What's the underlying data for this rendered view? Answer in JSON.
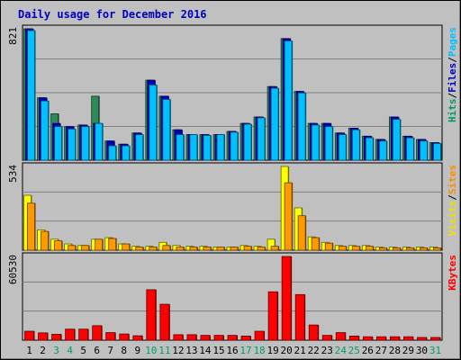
{
  "chart_data": {
    "type": "bar",
    "title": "Daily usage for December 2016",
    "days": [
      "1",
      "2",
      "3",
      "4",
      "5",
      "6",
      "7",
      "8",
      "9",
      "10",
      "11",
      "12",
      "13",
      "14",
      "15",
      "16",
      "17",
      "18",
      "19",
      "20",
      "21",
      "22",
      "23",
      "24",
      "25",
      "26",
      "27",
      "28",
      "29",
      "30",
      "31"
    ],
    "weekend_days": [
      "3",
      "4",
      "10",
      "11",
      "17",
      "18",
      "24",
      "25",
      "31"
    ],
    "panels": [
      {
        "max_label": "821",
        "ylim": [
          0,
          821
        ],
        "right_labels": [
          {
            "text": "Hits",
            "color": "#009966"
          },
          {
            "text": "/",
            "color": "#000000"
          },
          {
            "text": "Files",
            "color": "#0000C0"
          },
          {
            "text": "/",
            "color": "#000000"
          },
          {
            "text": "Pages",
            "color": "#00C0FF"
          }
        ],
        "series": [
          {
            "color": "#2E8B57",
            "values": [
              821,
              390,
              290,
              210,
              220,
              400,
              120,
              100,
              170,
              500,
              400,
              190,
              160,
              160,
              160,
              180,
              230,
              270,
              460,
              760,
              430,
              230,
              230,
              170,
              200,
              150,
              130,
              270,
              150,
              130,
              110
            ]
          },
          {
            "color": "#0000C0",
            "values": [
              821,
              390,
              230,
              210,
              220,
              230,
              120,
              100,
              170,
              500,
              400,
              190,
              160,
              160,
              160,
              180,
              230,
              270,
              460,
              760,
              430,
              230,
              230,
              170,
              200,
              150,
              130,
              270,
              150,
              130,
              110
            ]
          },
          {
            "color": "#00C0FF",
            "values": [
              810,
              370,
              210,
              195,
              210,
              230,
              90,
              90,
              160,
              470,
              380,
              160,
              160,
              155,
              160,
              175,
              225,
              265,
              450,
              745,
              420,
              220,
              210,
              160,
              190,
              140,
              120,
              255,
              140,
              120,
              105
            ]
          }
        ]
      },
      {
        "max_label": "534",
        "ylim": [
          0,
          534
        ],
        "right_labels": [
          {
            "text": "Visits",
            "color": "#F0E000"
          },
          {
            "text": "/",
            "color": "#000000"
          },
          {
            "text": "Sites",
            "color": "#FF8C00"
          }
        ],
        "series": [
          {
            "color": "#FFFF00",
            "values": [
              350,
              130,
              70,
              40,
              30,
              70,
              80,
              40,
              25,
              25,
              50,
              30,
              25,
              25,
              20,
              20,
              30,
              25,
              70,
              534,
              270,
              85,
              50,
              30,
              30,
              30,
              20,
              20,
              20,
              20,
              20
            ]
          },
          {
            "color": "#FF9900",
            "values": [
              300,
              120,
              60,
              30,
              30,
              70,
              75,
              40,
              20,
              20,
              30,
              20,
              20,
              20,
              20,
              20,
              25,
              20,
              25,
              430,
              220,
              80,
              45,
              25,
              25,
              25,
              15,
              15,
              15,
              15,
              15
            ]
          }
        ]
      },
      {
        "max_label": "60530",
        "ylim": [
          0,
          60530
        ],
        "right_labels": [
          {
            "text": "KBytes",
            "color": "#FF0000"
          }
        ],
        "series": [
          {
            "color": "#FF0000",
            "values": [
              6500,
              5300,
              4300,
              8000,
              8000,
              10500,
              5500,
              4500,
              3200,
              36500,
              26000,
              4000,
              4000,
              3500,
              3500,
              3500,
              3000,
              6500,
              35000,
              60530,
              33000,
              11000,
              3500,
              5500,
              3000,
              2500,
              2500,
              2500,
              2500,
              2000,
              2000
            ]
          }
        ]
      }
    ]
  }
}
